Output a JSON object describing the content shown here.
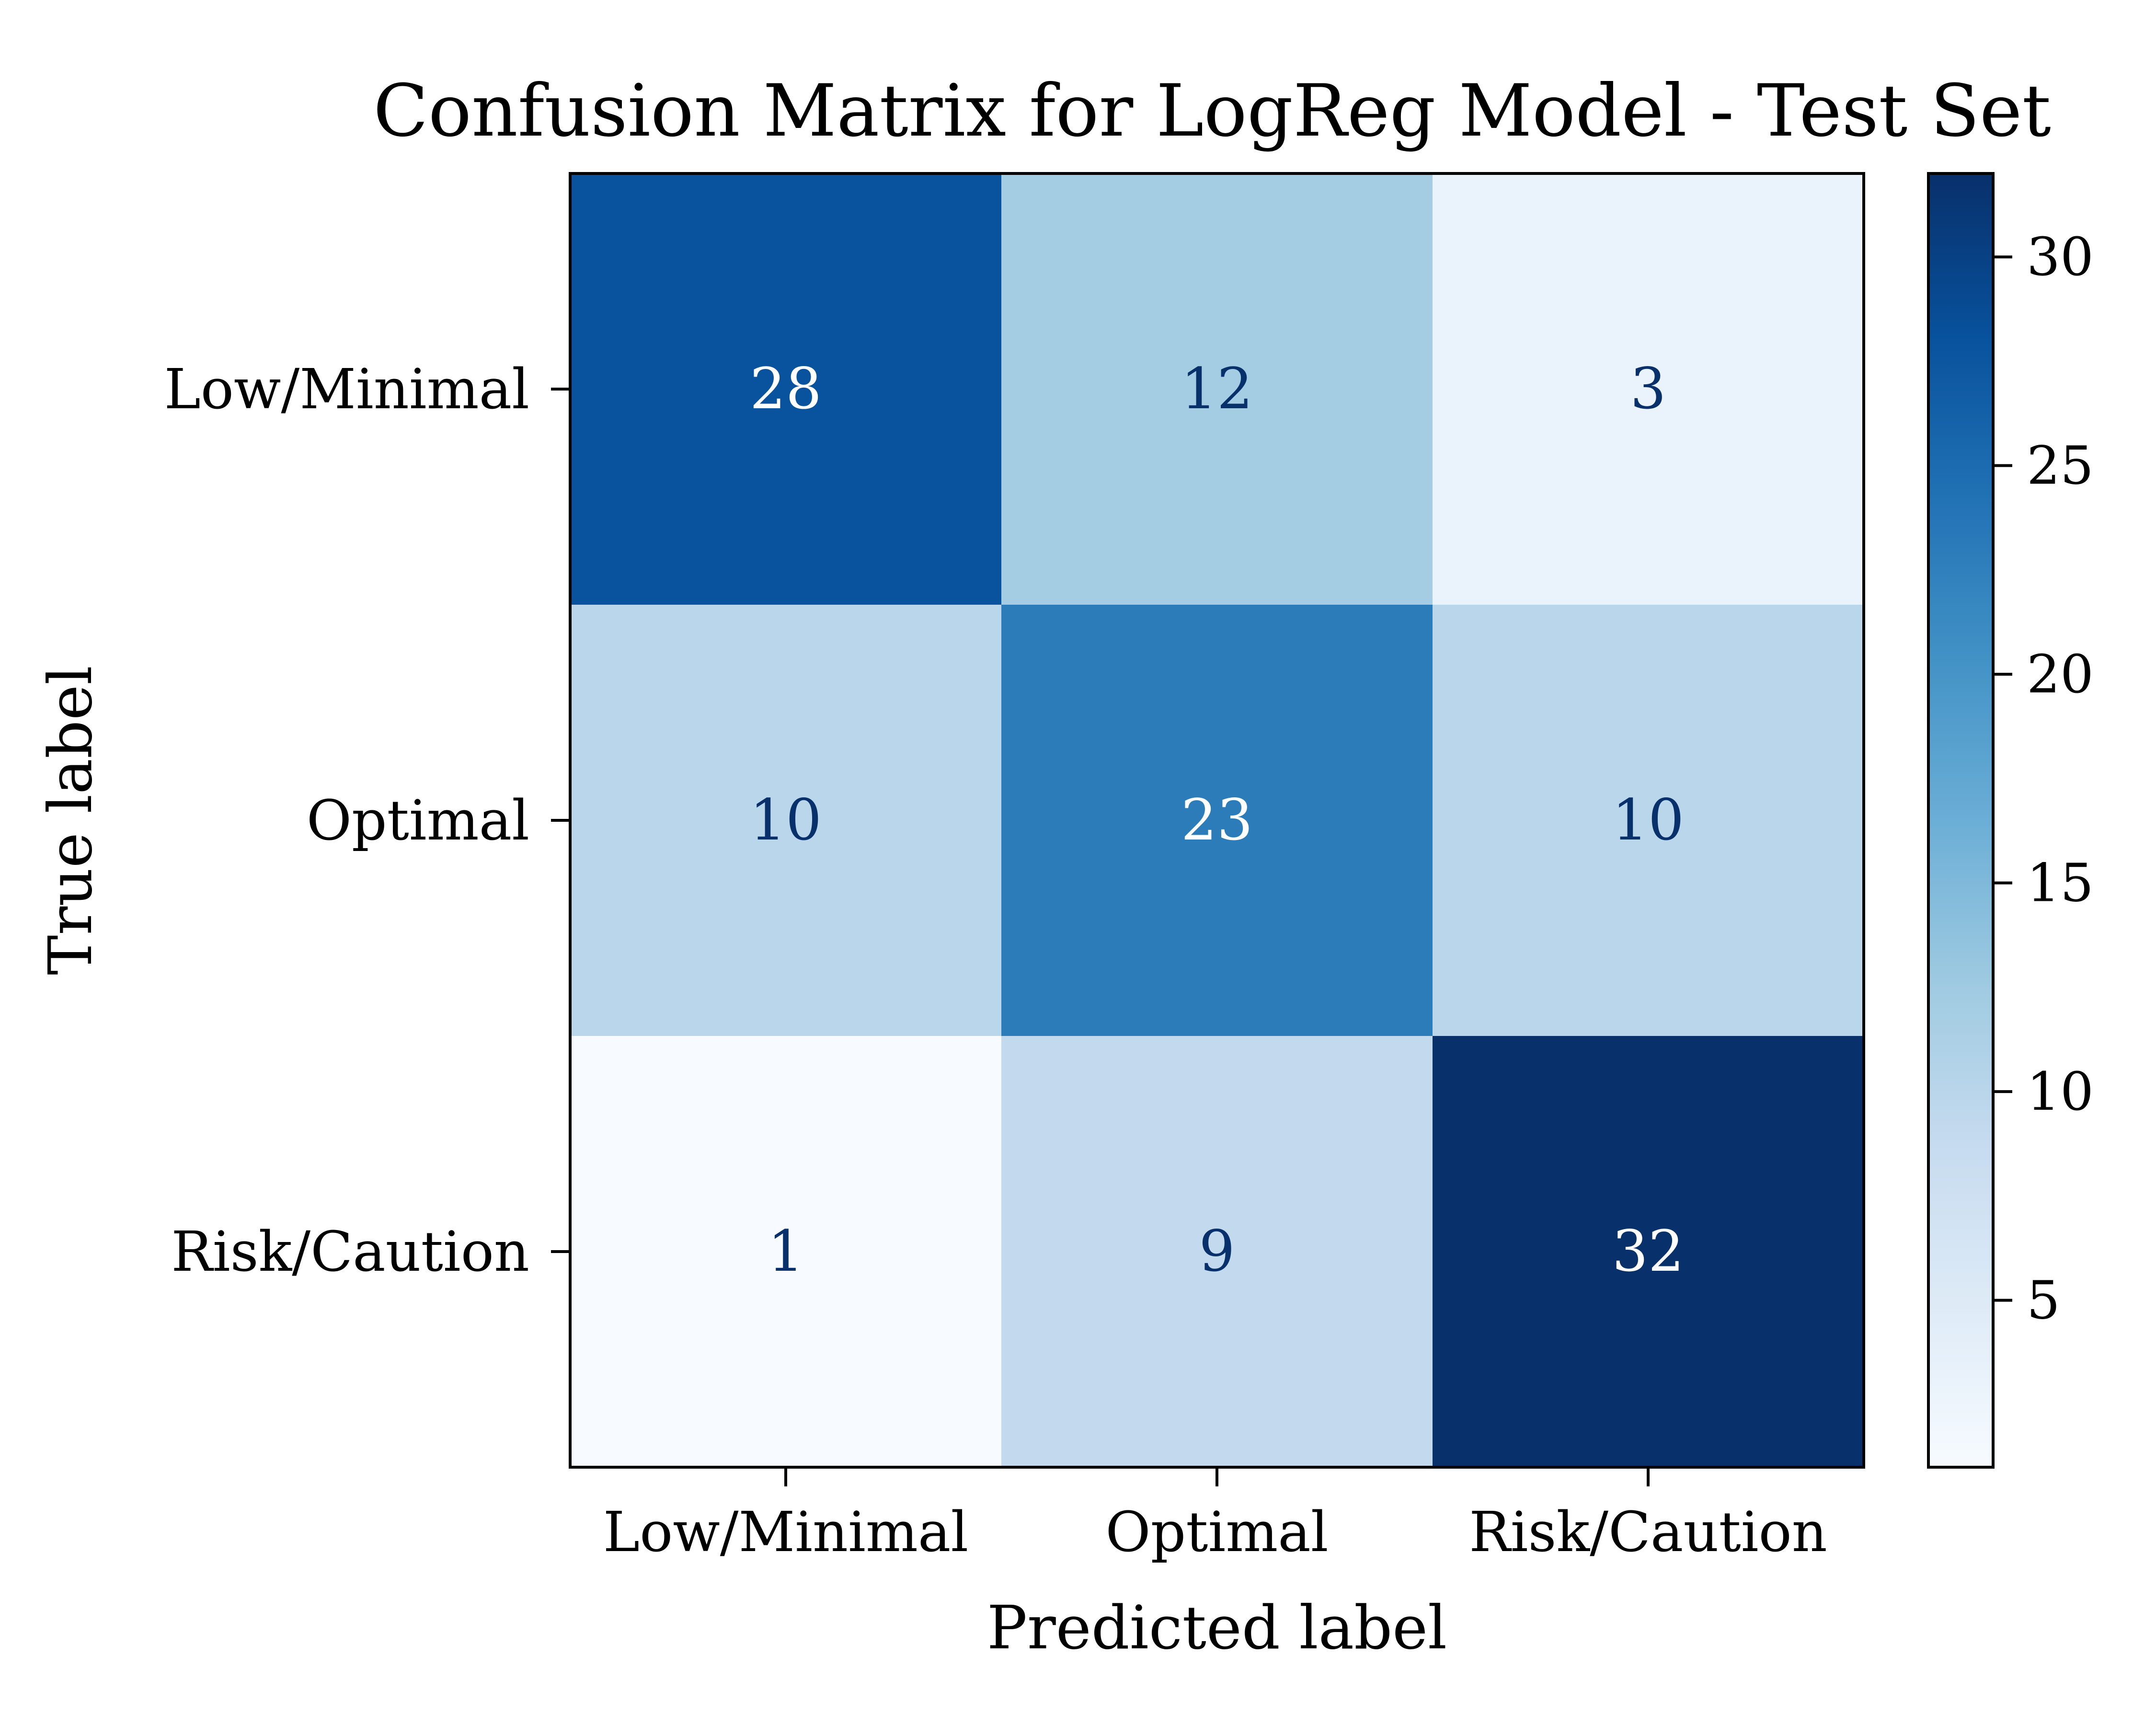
{
  "chart_data": {
    "type": "heatmap",
    "title": "Confusion Matrix for LogReg Model - Test Set",
    "xlabel": "Predicted label",
    "ylabel": "True label",
    "x_categories": [
      "Low/Minimal",
      "Optimal",
      "Risk/Caution"
    ],
    "y_categories": [
      "Low/Minimal",
      "Optimal",
      "Risk/Caution"
    ],
    "values": [
      [
        28,
        12,
        3
      ],
      [
        10,
        23,
        10
      ],
      [
        1,
        9,
        32
      ]
    ],
    "colormap": "Blues",
    "color_range": [
      1,
      32
    ],
    "colorbar_ticks": [
      5,
      10,
      15,
      20,
      25,
      30
    ],
    "grid": false,
    "colors": {
      "light": "#f7fbff",
      "dark": "#08306b",
      "text_dark": "#08306b",
      "text_light": "#ffffff"
    }
  }
}
